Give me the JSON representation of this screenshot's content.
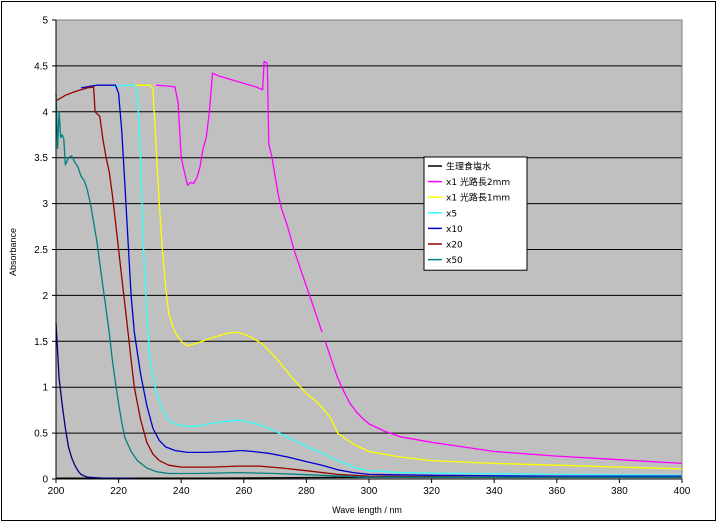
{
  "chart_data": {
    "type": "line",
    "title": "",
    "xlabel": "Wave length / nm",
    "ylabel": "Absorbance",
    "xlim": [
      200,
      400
    ],
    "ylim": [
      0,
      5
    ],
    "x_ticks": [
      "200",
      "220",
      "240",
      "260",
      "280",
      "300",
      "320",
      "340",
      "360",
      "380",
      "400"
    ],
    "y_ticks": [
      "0",
      "0.5",
      "1",
      "1.5",
      "2",
      "2.5",
      "3",
      "3.5",
      "4",
      "4.5",
      "5"
    ],
    "grid": true,
    "legend_position": "right",
    "plot_background": "#c0c0c0",
    "series": [
      {
        "name": "生理食塩水",
        "color": "#000000",
        "points": [
          [
            200,
            0.01
          ],
          [
            250,
            0.01
          ],
          [
            300,
            0.02
          ],
          [
            350,
            0.02
          ],
          [
            400,
            0.02
          ]
        ]
      },
      {
        "name": "x1 光路長2mm",
        "color": "#ff00ff",
        "points": [
          [
            232,
            4.29
          ],
          [
            236,
            4.28
          ],
          [
            238,
            4.27
          ],
          [
            239,
            4.1
          ],
          [
            240,
            3.5
          ],
          [
            241,
            3.35
          ],
          [
            242,
            3.2
          ],
          [
            243,
            3.23
          ],
          [
            244,
            3.22
          ],
          [
            245,
            3.28
          ],
          [
            246,
            3.4
          ],
          [
            247,
            3.6
          ],
          [
            248,
            3.72
          ],
          [
            249,
            4.0
          ],
          [
            250,
            4.42
          ],
          [
            252,
            4.39
          ],
          [
            255,
            4.36
          ],
          [
            258,
            4.33
          ],
          [
            261,
            4.3
          ],
          [
            264,
            4.27
          ],
          [
            266,
            4.24
          ],
          [
            266.5,
            4.55
          ],
          [
            267.5,
            4.53
          ],
          [
            268,
            3.65
          ],
          [
            269,
            3.5
          ],
          [
            270,
            3.3
          ],
          [
            271,
            3.1
          ],
          [
            272,
            2.95
          ],
          [
            274,
            2.75
          ],
          [
            276,
            2.5
          ],
          [
            278,
            2.3
          ],
          [
            280,
            2.1
          ],
          [
            282,
            1.9
          ],
          [
            284,
            1.7
          ],
          [
            285,
            1.6
          ],
          [
            null,
            null
          ],
          [
            286,
            1.5
          ],
          [
            288,
            1.3
          ],
          [
            290,
            1.1
          ],
          [
            292,
            0.95
          ],
          [
            294,
            0.82
          ],
          [
            296,
            0.73
          ],
          [
            298,
            0.66
          ],
          [
            300,
            0.6
          ],
          [
            305,
            0.52
          ],
          [
            310,
            0.46
          ],
          [
            320,
            0.4
          ],
          [
            330,
            0.35
          ],
          [
            340,
            0.3
          ],
          [
            360,
            0.25
          ],
          [
            380,
            0.21
          ],
          [
            400,
            0.17
          ]
        ]
      },
      {
        "name": "x1 光路長1mm",
        "color": "#ffff00",
        "points": [
          [
            225,
            4.29
          ],
          [
            229,
            4.29
          ],
          [
            230,
            4.29
          ],
          [
            231,
            4.25
          ],
          [
            232,
            3.6
          ],
          [
            233,
            3.0
          ],
          [
            234,
            2.5
          ],
          [
            235,
            2.1
          ],
          [
            236,
            1.8
          ],
          [
            238,
            1.6
          ],
          [
            240,
            1.5
          ],
          [
            242,
            1.45
          ],
          [
            245,
            1.48
          ],
          [
            250,
            1.54
          ],
          [
            255,
            1.59
          ],
          [
            258,
            1.6
          ],
          [
            262,
            1.55
          ],
          [
            266,
            1.47
          ],
          [
            270,
            1.33
          ],
          [
            275,
            1.12
          ],
          [
            280,
            0.93
          ],
          [
            283,
            0.85
          ],
          [
            285,
            0.78
          ],
          [
            288,
            0.65
          ],
          [
            290,
            0.5
          ],
          [
            295,
            0.38
          ],
          [
            300,
            0.3
          ],
          [
            310,
            0.24
          ],
          [
            320,
            0.2
          ],
          [
            340,
            0.17
          ],
          [
            360,
            0.15
          ],
          [
            380,
            0.13
          ],
          [
            400,
            0.11
          ]
        ]
      },
      {
        "name": "x5",
        "color": "#33ffff",
        "points": [
          [
            218,
            4.28
          ],
          [
            224,
            4.29
          ],
          [
            225,
            4.29
          ],
          [
            226,
            4.2
          ],
          [
            227,
            3.5
          ],
          [
            228,
            2.5
          ],
          [
            229,
            1.8
          ],
          [
            230,
            1.3
          ],
          [
            232,
            0.95
          ],
          [
            234,
            0.75
          ],
          [
            236,
            0.64
          ],
          [
            238,
            0.6
          ],
          [
            242,
            0.57
          ],
          [
            246,
            0.58
          ],
          [
            250,
            0.61
          ],
          [
            255,
            0.63
          ],
          [
            258,
            0.64
          ],
          [
            262,
            0.62
          ],
          [
            266,
            0.58
          ],
          [
            270,
            0.52
          ],
          [
            275,
            0.44
          ],
          [
            280,
            0.36
          ],
          [
            285,
            0.28
          ],
          [
            290,
            0.2
          ],
          [
            295,
            0.13
          ],
          [
            300,
            0.09
          ],
          [
            310,
            0.07
          ],
          [
            330,
            0.06
          ],
          [
            360,
            0.05
          ],
          [
            400,
            0.04
          ]
        ]
      },
      {
        "name": "x10",
        "color": "#0000cc",
        "points": [
          [
            208,
            4.26
          ],
          [
            213,
            4.29
          ],
          [
            219,
            4.29
          ],
          [
            220,
            4.2
          ],
          [
            221,
            3.8
          ],
          [
            222,
            3.2
          ],
          [
            223,
            2.6
          ],
          [
            224,
            2.0
          ],
          [
            225,
            1.6
          ],
          [
            227,
            1.15
          ],
          [
            229,
            0.8
          ],
          [
            231,
            0.55
          ],
          [
            233,
            0.42
          ],
          [
            235,
            0.35
          ],
          [
            238,
            0.31
          ],
          [
            242,
            0.29
          ],
          [
            248,
            0.29
          ],
          [
            255,
            0.3
          ],
          [
            259,
            0.31
          ],
          [
            263,
            0.3
          ],
          [
            268,
            0.28
          ],
          [
            274,
            0.24
          ],
          [
            280,
            0.19
          ],
          [
            285,
            0.15
          ],
          [
            290,
            0.1
          ],
          [
            295,
            0.07
          ],
          [
            300,
            0.05
          ],
          [
            320,
            0.04
          ],
          [
            360,
            0.03
          ],
          [
            400,
            0.03
          ]
        ]
      },
      {
        "name": "x20",
        "color": "#990000",
        "points": [
          [
            200,
            4.12
          ],
          [
            203,
            4.18
          ],
          [
            206,
            4.22
          ],
          [
            210,
            4.26
          ],
          [
            212,
            4.27
          ],
          [
            212.5,
            4.0
          ],
          [
            214,
            3.95
          ],
          [
            215,
            3.7
          ],
          [
            216,
            3.5
          ],
          [
            217,
            3.35
          ],
          [
            218,
            3.1
          ],
          [
            219,
            2.8
          ],
          [
            220,
            2.5
          ],
          [
            221,
            2.2
          ],
          [
            222,
            1.9
          ],
          [
            223,
            1.6
          ],
          [
            224,
            1.3
          ],
          [
            225,
            1.0
          ],
          [
            227,
            0.65
          ],
          [
            229,
            0.4
          ],
          [
            231,
            0.27
          ],
          [
            233,
            0.2
          ],
          [
            236,
            0.15
          ],
          [
            240,
            0.13
          ],
          [
            250,
            0.13
          ],
          [
            258,
            0.14
          ],
          [
            265,
            0.14
          ],
          [
            272,
            0.12
          ],
          [
            280,
            0.09
          ],
          [
            290,
            0.05
          ],
          [
            300,
            0.03
          ],
          [
            350,
            0.02
          ],
          [
            400,
            0.02
          ]
        ]
      },
      {
        "name": "x50",
        "color": "#008080",
        "points": [
          [
            200,
            4.2
          ],
          [
            200.5,
            3.6
          ],
          [
            201,
            4.0
          ],
          [
            201.5,
            3.72
          ],
          [
            202,
            3.75
          ],
          [
            202.5,
            3.7
          ],
          [
            203,
            3.42
          ],
          [
            204,
            3.5
          ],
          [
            205,
            3.52
          ],
          [
            206,
            3.45
          ],
          [
            207,
            3.4
          ],
          [
            208,
            3.3
          ],
          [
            209,
            3.25
          ],
          [
            210,
            3.15
          ],
          [
            211,
            3.0
          ],
          [
            212,
            2.8
          ],
          [
            213,
            2.6
          ],
          [
            214,
            2.35
          ],
          [
            215,
            2.1
          ],
          [
            216,
            1.85
          ],
          [
            217,
            1.6
          ],
          [
            218,
            1.3
          ],
          [
            219,
            1.05
          ],
          [
            220,
            0.82
          ],
          [
            221,
            0.62
          ],
          [
            222,
            0.45
          ],
          [
            224,
            0.3
          ],
          [
            226,
            0.2
          ],
          [
            229,
            0.12
          ],
          [
            232,
            0.08
          ],
          [
            236,
            0.06
          ],
          [
            245,
            0.06
          ],
          [
            258,
            0.07
          ],
          [
            270,
            0.06
          ],
          [
            285,
            0.04
          ],
          [
            300,
            0.02
          ],
          [
            350,
            0.02
          ],
          [
            400,
            0.02
          ]
        ]
      },
      {
        "name": "",
        "legend": false,
        "color": "#000080",
        "points": [
          [
            200,
            1.7
          ],
          [
            201,
            1.1
          ],
          [
            202,
            0.8
          ],
          [
            203,
            0.55
          ],
          [
            204,
            0.35
          ],
          [
            205,
            0.23
          ],
          [
            206,
            0.15
          ],
          [
            207,
            0.09
          ],
          [
            208,
            0.05
          ],
          [
            210,
            0.02
          ],
          [
            215,
            0.01
          ],
          [
            225,
            0.01
          ]
        ]
      }
    ]
  }
}
